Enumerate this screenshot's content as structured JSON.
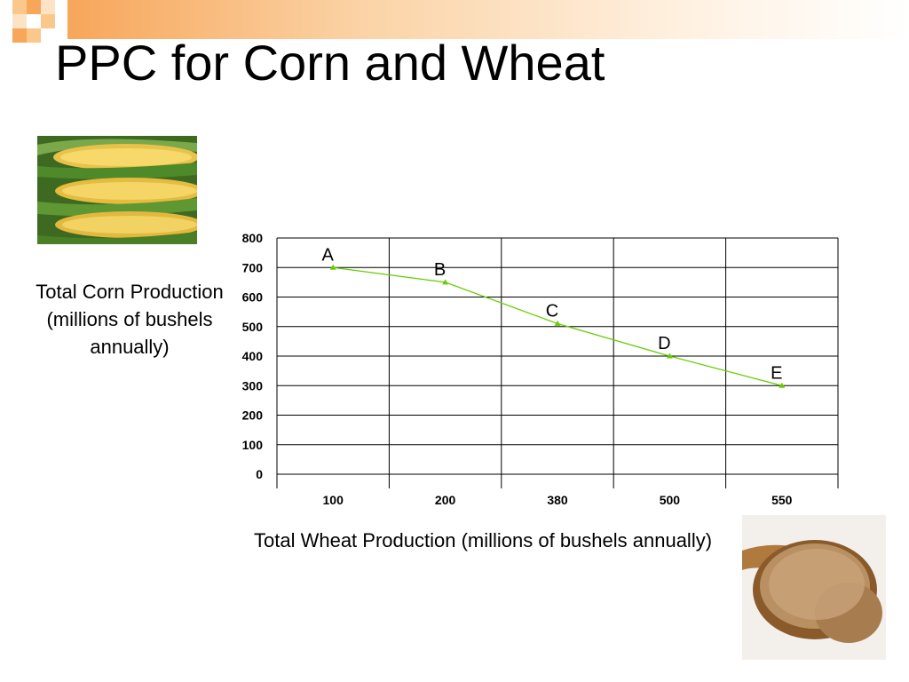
{
  "slide": {
    "title": "PPC for Corn and Wheat",
    "y_axis_caption": "Total Corn Production (millions of bushels annually)",
    "x_axis_caption": "Total Wheat Production (millions of bushels annually)"
  },
  "images": {
    "corn": "corn-cobs",
    "wheat": "wheat-grains-in-wooden-spoon"
  },
  "colors": {
    "line": "#66cc00",
    "header_bar": "#f7a65a",
    "gridline": "#000000"
  },
  "chart_data": {
    "type": "line",
    "categories": [
      "100",
      "200",
      "380",
      "500",
      "550"
    ],
    "series": [
      {
        "values": [
          700,
          650,
          510,
          400,
          300
        ]
      }
    ],
    "point_labels": [
      "A",
      "B",
      "C",
      "D",
      "E"
    ],
    "yticks": [
      "0",
      "100",
      "200",
      "300",
      "400",
      "500",
      "600",
      "700",
      "800"
    ],
    "ylim": [
      0,
      800
    ],
    "xlabel": "Total Wheat Production (millions of bushels annually)",
    "ylabel": "Total Corn Production (millions of bushels annually)",
    "grid": true
  }
}
